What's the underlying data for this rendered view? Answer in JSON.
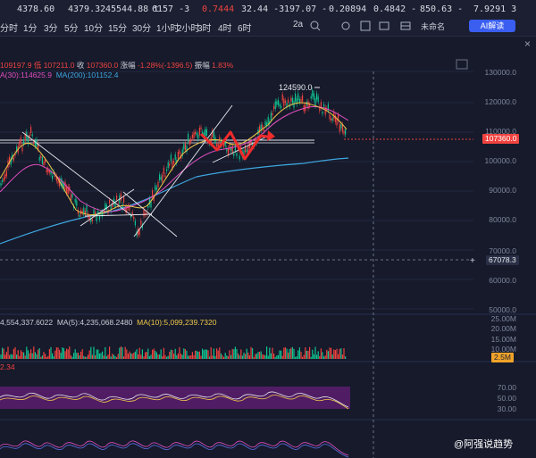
{
  "ticker": [
    {
      "val": "4378.60",
      "cls": "wh"
    },
    {
      "val": "4379.32",
      "cls": "wh"
    },
    {
      "val": "45544.88 t",
      "cls": "wh"
    },
    {
      "val": "6157 -3",
      "cls": "wh"
    },
    {
      "val": "0.7444",
      "cls": "red"
    },
    {
      "val": "32.44 -3",
      "cls": "wh"
    },
    {
      "val": "197.07 -",
      "cls": "wh"
    },
    {
      "val": "0.20894",
      "cls": "wh"
    },
    {
      "val": "0.4842 -",
      "cls": "wh"
    },
    {
      "val": "850.63 -",
      "cls": "wh"
    },
    {
      "val": "7.9291 3",
      "cls": "wh"
    }
  ],
  "toolbar": {
    "timeframes": [
      "分时",
      "1分",
      "3分",
      "5分",
      "10分",
      "15分",
      "30分",
      "1小时",
      "2小时",
      "3时",
      "4时",
      "6时"
    ],
    "right_label": "2a",
    "name_select": "未命名",
    "ai_button": "AI解读"
  },
  "info": {
    "ohlc_prefix": "109197.9 低 ",
    "low": "107211.0",
    "close_label": " 收 ",
    "close": "107360.0",
    "change_label": " 涨幅 ",
    "change": "-1.28%(-1396.5)",
    "amp_label": " 振幅 ",
    "amp": "1.83%",
    "ma30": "A(30):114625.9",
    "ma200": "MA(200):101152.4",
    "vol": "4,554,337.6022",
    "vol_ma5": "MA(5):4,235,068.2480",
    "vol_ma10": "MA(10):5,099,239.7320",
    "ind_val": "2.34"
  },
  "axis": {
    "price": [
      "130000.0",
      "120000.0",
      "110000.0",
      "100000.0",
      "90000.0",
      "80000.0",
      "70000.0",
      "60000.0",
      "50000.0"
    ],
    "volume": [
      "25.00M",
      "20.00M",
      "15.00M",
      "10.00M"
    ],
    "rsi": [
      "70.00",
      "50.00",
      "30.00"
    ]
  },
  "price_tags": {
    "current": "107360.0",
    "crosshair": "67078.3",
    "volume": "2.5M"
  },
  "peak_label": "124590.0",
  "watermark": "@阿强说趋势",
  "colors": {
    "up": "#10c491",
    "down": "#f0433f",
    "ma30": "#e24fc0",
    "ma200": "#3fa7e0",
    "bg": "#161a2b"
  }
}
